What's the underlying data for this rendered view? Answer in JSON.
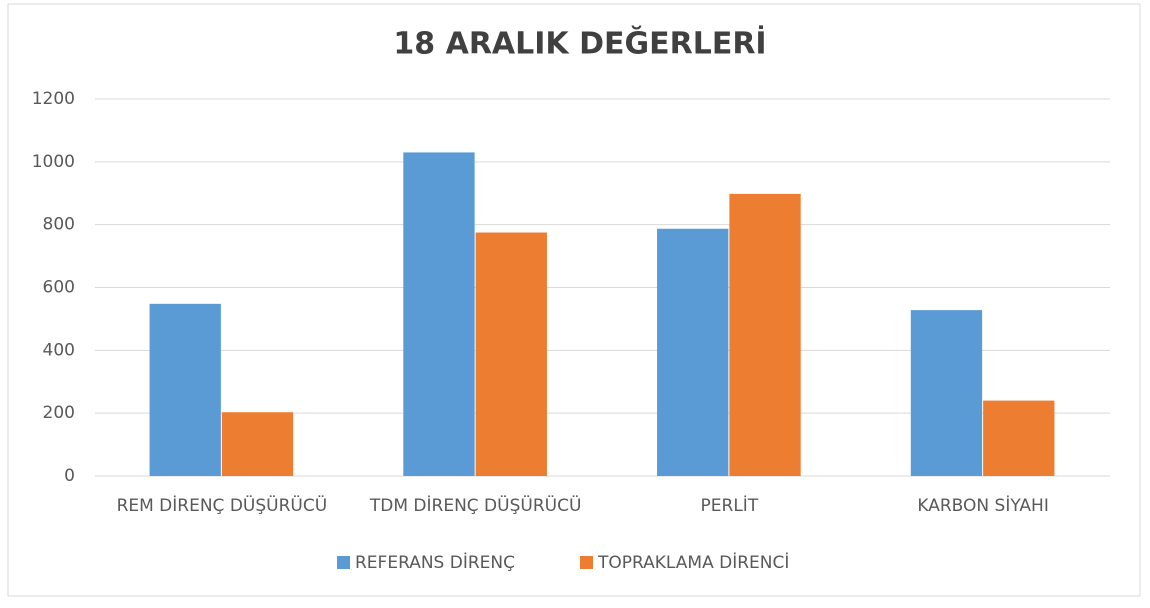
{
  "chart_data": {
    "type": "bar",
    "title": "18 ARALIK DEĞERLERİ",
    "categories": [
      "REM DİRENÇ DÜŞÜRÜCÜ",
      "TDM DİRENÇ DÜŞÜRÜCÜ",
      "PERLİT",
      "KARBON SİYAHI"
    ],
    "series": [
      {
        "name": "REFERANS DİRENÇ",
        "color": "#5b9bd5",
        "values": [
          548,
          1030,
          787,
          528
        ]
      },
      {
        "name": "TOPRAKLAMA DİRENCİ",
        "color": "#ed7d31",
        "values": [
          203,
          775,
          898,
          240
        ]
      }
    ],
    "ylim": [
      0,
      1200
    ],
    "yticks": [
      0,
      200,
      400,
      600,
      800,
      1000,
      1200
    ],
    "grid": true,
    "legend": "bottom"
  }
}
